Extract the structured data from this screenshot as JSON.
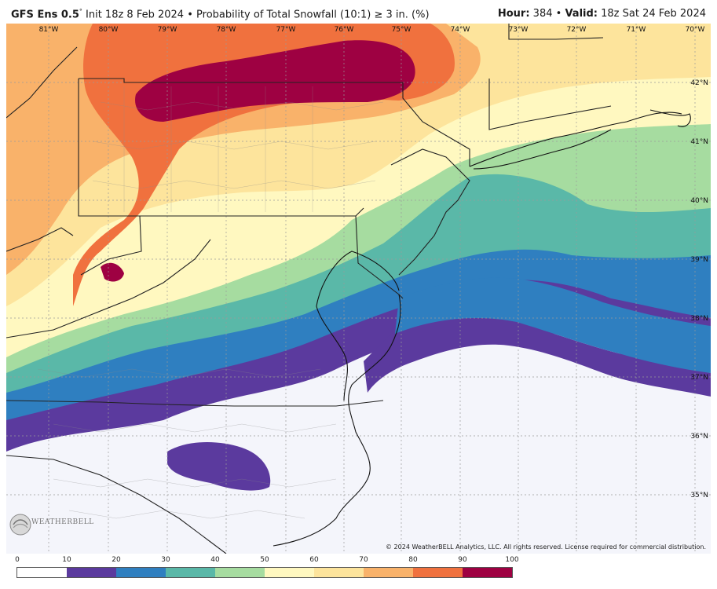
{
  "header": {
    "model": "GFS Ens 0.5",
    "deg": "°",
    "init": "Init 18z 8 Feb 2024",
    "bullet": "•",
    "product": "Probability of Total Snowfall (10:1)",
    "threshold": "≥ 3 in. (%)",
    "hour_label": "Hour:",
    "hour_value": "384",
    "valid_label": "Valid:",
    "valid_value": "18z Sat 24 Feb 2024"
  },
  "longitude_labels": [
    "81°W",
    "80°W",
    "79°W",
    "78°W",
    "77°W",
    "76°W",
    "75°W",
    "74°W",
    "73°W",
    "72°W",
    "71°W",
    "70°W"
  ],
  "latitude_labels": [
    "42°N",
    "41°N",
    "40°N",
    "39°N",
    "38°N",
    "37°N",
    "36°N",
    "35°N"
  ],
  "copyright": "© 2024 WeatherBELL Analytics, LLC. All rights reserved. License required for commercial distribution.",
  "logo": {
    "text": "WEATHERBELL"
  },
  "scale": {
    "ticks": [
      "0",
      "10",
      "20",
      "30",
      "40",
      "50",
      "60",
      "70",
      "80",
      "90",
      "100"
    ],
    "colors": [
      "#ffffff",
      "#5b3a9e",
      "#2f7fc0",
      "#5ab8a8",
      "#a6dca0",
      "#fff8c0",
      "#fde49c",
      "#f9b26a",
      "#f0713e",
      "#9e0142"
    ]
  }
}
